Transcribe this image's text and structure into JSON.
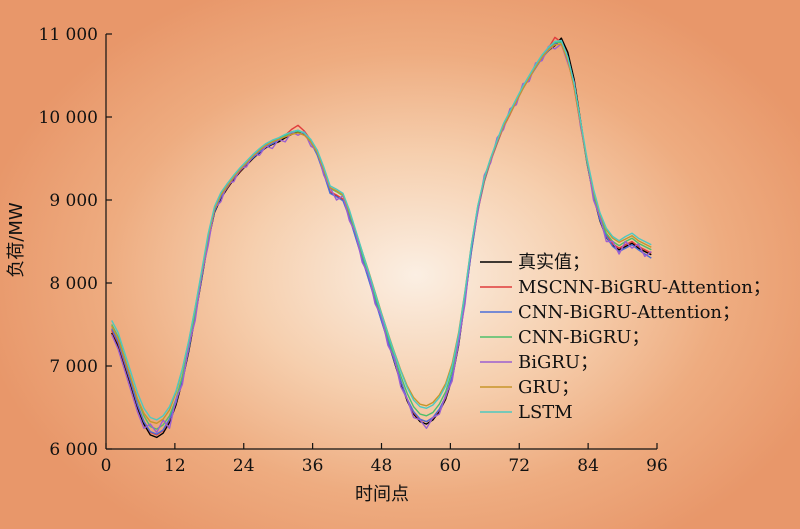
{
  "chart_data": {
    "type": "line",
    "xlabel": "时间点",
    "ylabel": "负荷/MW",
    "xlim": [
      0,
      96
    ],
    "ylim": [
      6000,
      11000
    ],
    "x_ticks": [
      "0",
      "12",
      "24",
      "36",
      "48",
      "60",
      "72",
      "84",
      "96"
    ],
    "y_ticks": [
      "6 000",
      "7 000",
      "8 000",
      "9 000",
      "10 000",
      "11 000"
    ],
    "x_tick_values": [
      0,
      12,
      24,
      36,
      48,
      60,
      72,
      84,
      96
    ],
    "y_tick_values": [
      6000,
      7000,
      8000,
      9000,
      10000,
      11000
    ],
    "grid": false,
    "legend_position": "lower-right",
    "series": [
      {
        "name": "真实值；",
        "color": "#000000",
        "values": [
          7400,
          7240,
          7000,
          6760,
          6500,
          6300,
          6170,
          6140,
          6190,
          6320,
          6530,
          6820,
          7180,
          7600,
          8050,
          8500,
          8850,
          9020,
          9140,
          9250,
          9340,
          9420,
          9500,
          9570,
          9630,
          9670,
          9700,
          9750,
          9790,
          9820,
          9790,
          9700,
          9550,
          9330,
          9090,
          9050,
          9000,
          8800,
          8550,
          8300,
          8050,
          7800,
          7550,
          7300,
          7050,
          6800,
          6580,
          6420,
          6330,
          6300,
          6350,
          6450,
          6600,
          6850,
          7250,
          7800,
          8400,
          8900,
          9250,
          9500,
          9700,
          9900,
          10050,
          10200,
          10350,
          10480,
          10600,
          10720,
          10800,
          10860,
          10950,
          10780,
          10450,
          9950,
          9450,
          9050,
          8750,
          8550,
          8450,
          8400,
          8440,
          8480,
          8420,
          8380,
          8340
        ]
      },
      {
        "name": "MSCNN-BiGRU-Attention；",
        "color": "#e03c3c",
        "values": [
          7430,
          7270,
          7030,
          6790,
          6530,
          6330,
          6200,
          6170,
          6220,
          6350,
          6560,
          6850,
          7210,
          7630,
          8080,
          8530,
          8870,
          9040,
          9150,
          9260,
          9350,
          9430,
          9510,
          9580,
          9640,
          9680,
          9720,
          9780,
          9850,
          9900,
          9830,
          9720,
          9560,
          9340,
          9100,
          9060,
          9010,
          8820,
          8570,
          8320,
          8070,
          7820,
          7570,
          7320,
          7070,
          6820,
          6600,
          6440,
          6350,
          6330,
          6370,
          6470,
          6620,
          6870,
          7270,
          7810,
          8380,
          8870,
          9220,
          9470,
          9680,
          9880,
          10030,
          10190,
          10340,
          10470,
          10600,
          10720,
          10830,
          10960,
          10900,
          10700,
          10350,
          9900,
          9450,
          9100,
          8800,
          8580,
          8470,
          8420,
          8460,
          8500,
          8440,
          8400,
          8360
        ]
      },
      {
        "name": "CNN-BiGRU-Attention；",
        "color": "#4a6fd8",
        "values": [
          7450,
          7290,
          7050,
          6800,
          6540,
          6330,
          6210,
          6180,
          6230,
          6360,
          6560,
          6850,
          7200,
          7620,
          8060,
          8510,
          8860,
          9040,
          9160,
          9270,
          9360,
          9440,
          9510,
          9580,
          9640,
          9680,
          9720,
          9770,
          9820,
          9840,
          9800,
          9700,
          9540,
          9320,
          9080,
          9040,
          8990,
          8790,
          8540,
          8290,
          8040,
          7790,
          7540,
          7300,
          7060,
          6820,
          6600,
          6450,
          6360,
          6330,
          6380,
          6480,
          6630,
          6880,
          7270,
          7800,
          8380,
          8880,
          9230,
          9480,
          9690,
          9890,
          10040,
          10190,
          10340,
          10470,
          10590,
          10710,
          10800,
          10880,
          10920,
          10720,
          10400,
          9930,
          9440,
          9060,
          8760,
          8560,
          8440,
          8380,
          8420,
          8460,
          8400,
          8350,
          8300
        ]
      },
      {
        "name": "CNN-BiGRU；",
        "color": "#4fbf6a",
        "values": [
          7500,
          7350,
          7100,
          6850,
          6600,
          6400,
          6270,
          6240,
          6290,
          6400,
          6600,
          6880,
          7230,
          7650,
          8100,
          8560,
          8900,
          9070,
          9180,
          9290,
          9380,
          9460,
          9540,
          9610,
          9670,
          9710,
          9740,
          9780,
          9810,
          9830,
          9800,
          9720,
          9580,
          9370,
          9140,
          9100,
          9050,
          8840,
          8590,
          8340,
          8090,
          7840,
          7590,
          7350,
          7110,
          6880,
          6670,
          6510,
          6420,
          6400,
          6440,
          6540,
          6690,
          6940,
          7330,
          7860,
          8440,
          8920,
          9260,
          9500,
          9710,
          9910,
          10060,
          10210,
          10360,
          10490,
          10620,
          10740,
          10830,
          10900,
          10900,
          10700,
          10380,
          9920,
          9460,
          9080,
          8800,
          8600,
          8500,
          8450,
          8500,
          8540,
          8480,
          8440,
          8400
        ]
      },
      {
        "name": "BiGRU；",
        "color": "#9b5fd0",
        "values": [
          7380,
          7200,
          6950,
          6700,
          6450,
          6250,
          6300,
          6200,
          6350,
          6250,
          6600,
          6780,
          7250,
          7550,
          8100,
          8450,
          8900,
          8980,
          9200,
          9220,
          9380,
          9400,
          9550,
          9540,
          9650,
          9620,
          9730,
          9700,
          9820,
          9780,
          9820,
          9650,
          9600,
          9300,
          9150,
          9000,
          9050,
          8750,
          8600,
          8250,
          8100,
          7750,
          7600,
          7250,
          7100,
          6750,
          6600,
          6380,
          6350,
          6250,
          6380,
          6420,
          6650,
          6820,
          7300,
          7750,
          8450,
          8850,
          9300,
          9450,
          9750,
          9850,
          10100,
          10150,
          10400,
          10430,
          10650,
          10680,
          10850,
          10820,
          10880,
          10650,
          10420,
          9880,
          9500,
          9000,
          8800,
          8500,
          8500,
          8350,
          8500,
          8420,
          8470,
          8320,
          8380
        ]
      },
      {
        "name": "GRU；",
        "color": "#c8952a",
        "values": [
          7480,
          7330,
          7090,
          6850,
          6610,
          6430,
          6330,
          6310,
          6360,
          6470,
          6680,
          6960,
          7300,
          7700,
          8130,
          8560,
          8890,
          9060,
          9170,
          9280,
          9370,
          9450,
          9530,
          9600,
          9660,
          9700,
          9730,
          9760,
          9790,
          9810,
          9780,
          9700,
          9570,
          9370,
          9150,
          9110,
          9060,
          8860,
          8620,
          8380,
          8140,
          7890,
          7640,
          7400,
          7170,
          6950,
          6760,
          6620,
          6540,
          6520,
          6560,
          6650,
          6790,
          7030,
          7400,
          7900,
          8460,
          8920,
          9250,
          9490,
          9700,
          9890,
          10040,
          10190,
          10340,
          10470,
          10600,
          10720,
          10810,
          10870,
          10880,
          10680,
          10360,
          9920,
          9480,
          9110,
          8830,
          8640,
          8540,
          8490,
          8530,
          8570,
          8510,
          8470,
          8430
        ]
      },
      {
        "name": "LSTM",
        "color": "#4ec9c0",
        "values": [
          7550,
          7400,
          7160,
          6920,
          6680,
          6490,
          6380,
          6350,
          6400,
          6510,
          6700,
          6970,
          7310,
          7710,
          8150,
          8590,
          8920,
          9090,
          9200,
          9300,
          9390,
          9470,
          9550,
          9620,
          9680,
          9720,
          9750,
          9790,
          9820,
          9840,
          9810,
          9730,
          9600,
          9400,
          9170,
          9130,
          9080,
          8880,
          8630,
          8380,
          8130,
          7880,
          7630,
          7390,
          7160,
          6940,
          6740,
          6590,
          6510,
          6490,
          6530,
          6620,
          6760,
          7000,
          7380,
          7890,
          8460,
          8930,
          9270,
          9510,
          9720,
          9920,
          10070,
          10220,
          10370,
          10500,
          10630,
          10750,
          10840,
          10910,
          10920,
          10720,
          10400,
          9950,
          9500,
          9130,
          8850,
          8660,
          8560,
          8510,
          8560,
          8600,
          8540,
          8500,
          8460
        ]
      }
    ]
  }
}
